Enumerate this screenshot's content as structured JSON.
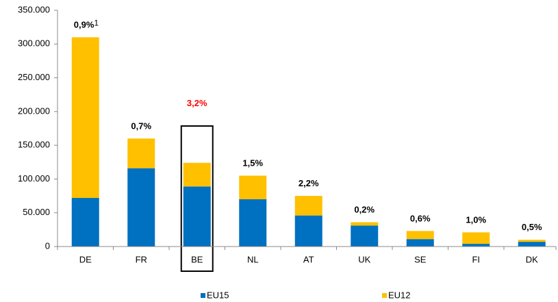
{
  "chart_data": {
    "type": "stacked-bar",
    "categories": [
      "DE",
      "FR",
      "BE",
      "NL",
      "AT",
      "UK",
      "SE",
      "FI",
      "DK"
    ],
    "series": [
      {
        "name": "EU15",
        "color": "#0070c0",
        "values": [
          72000,
          116000,
          89000,
          70000,
          46000,
          31000,
          11000,
          4000,
          7000
        ]
      },
      {
        "name": "EU12",
        "color": "#ffc000",
        "values": [
          238000,
          44000,
          35000,
          35000,
          29000,
          5000,
          12000,
          17000,
          3000
        ]
      }
    ],
    "annotations": [
      "0,9%",
      "0,7%",
      "3,2%",
      "1,5%",
      "2,2%",
      "0,2%",
      "0,6%",
      "1,0%",
      "0,5%"
    ],
    "annotation_colors": [
      "#000000",
      "#000000",
      "#ff0000",
      "#000000",
      "#000000",
      "#000000",
      "#000000",
      "#000000",
      "#000000"
    ],
    "annotation_footnote": "1",
    "ylim": [
      0,
      350000
    ],
    "yticks": [
      0,
      {
        "value": 50000,
        "label": "50.000"
      },
      {
        "value": 100000,
        "label": "100.000"
      },
      {
        "value": 150000,
        "label": "150.000"
      },
      {
        "value": 200000,
        "label": "200.000"
      },
      {
        "value": 250000,
        "label": "250.000"
      },
      {
        "value": 300000,
        "label": "300.000"
      },
      {
        "value": 350000,
        "label": "350.000"
      }
    ],
    "grid": false,
    "legend": "bottom"
  }
}
